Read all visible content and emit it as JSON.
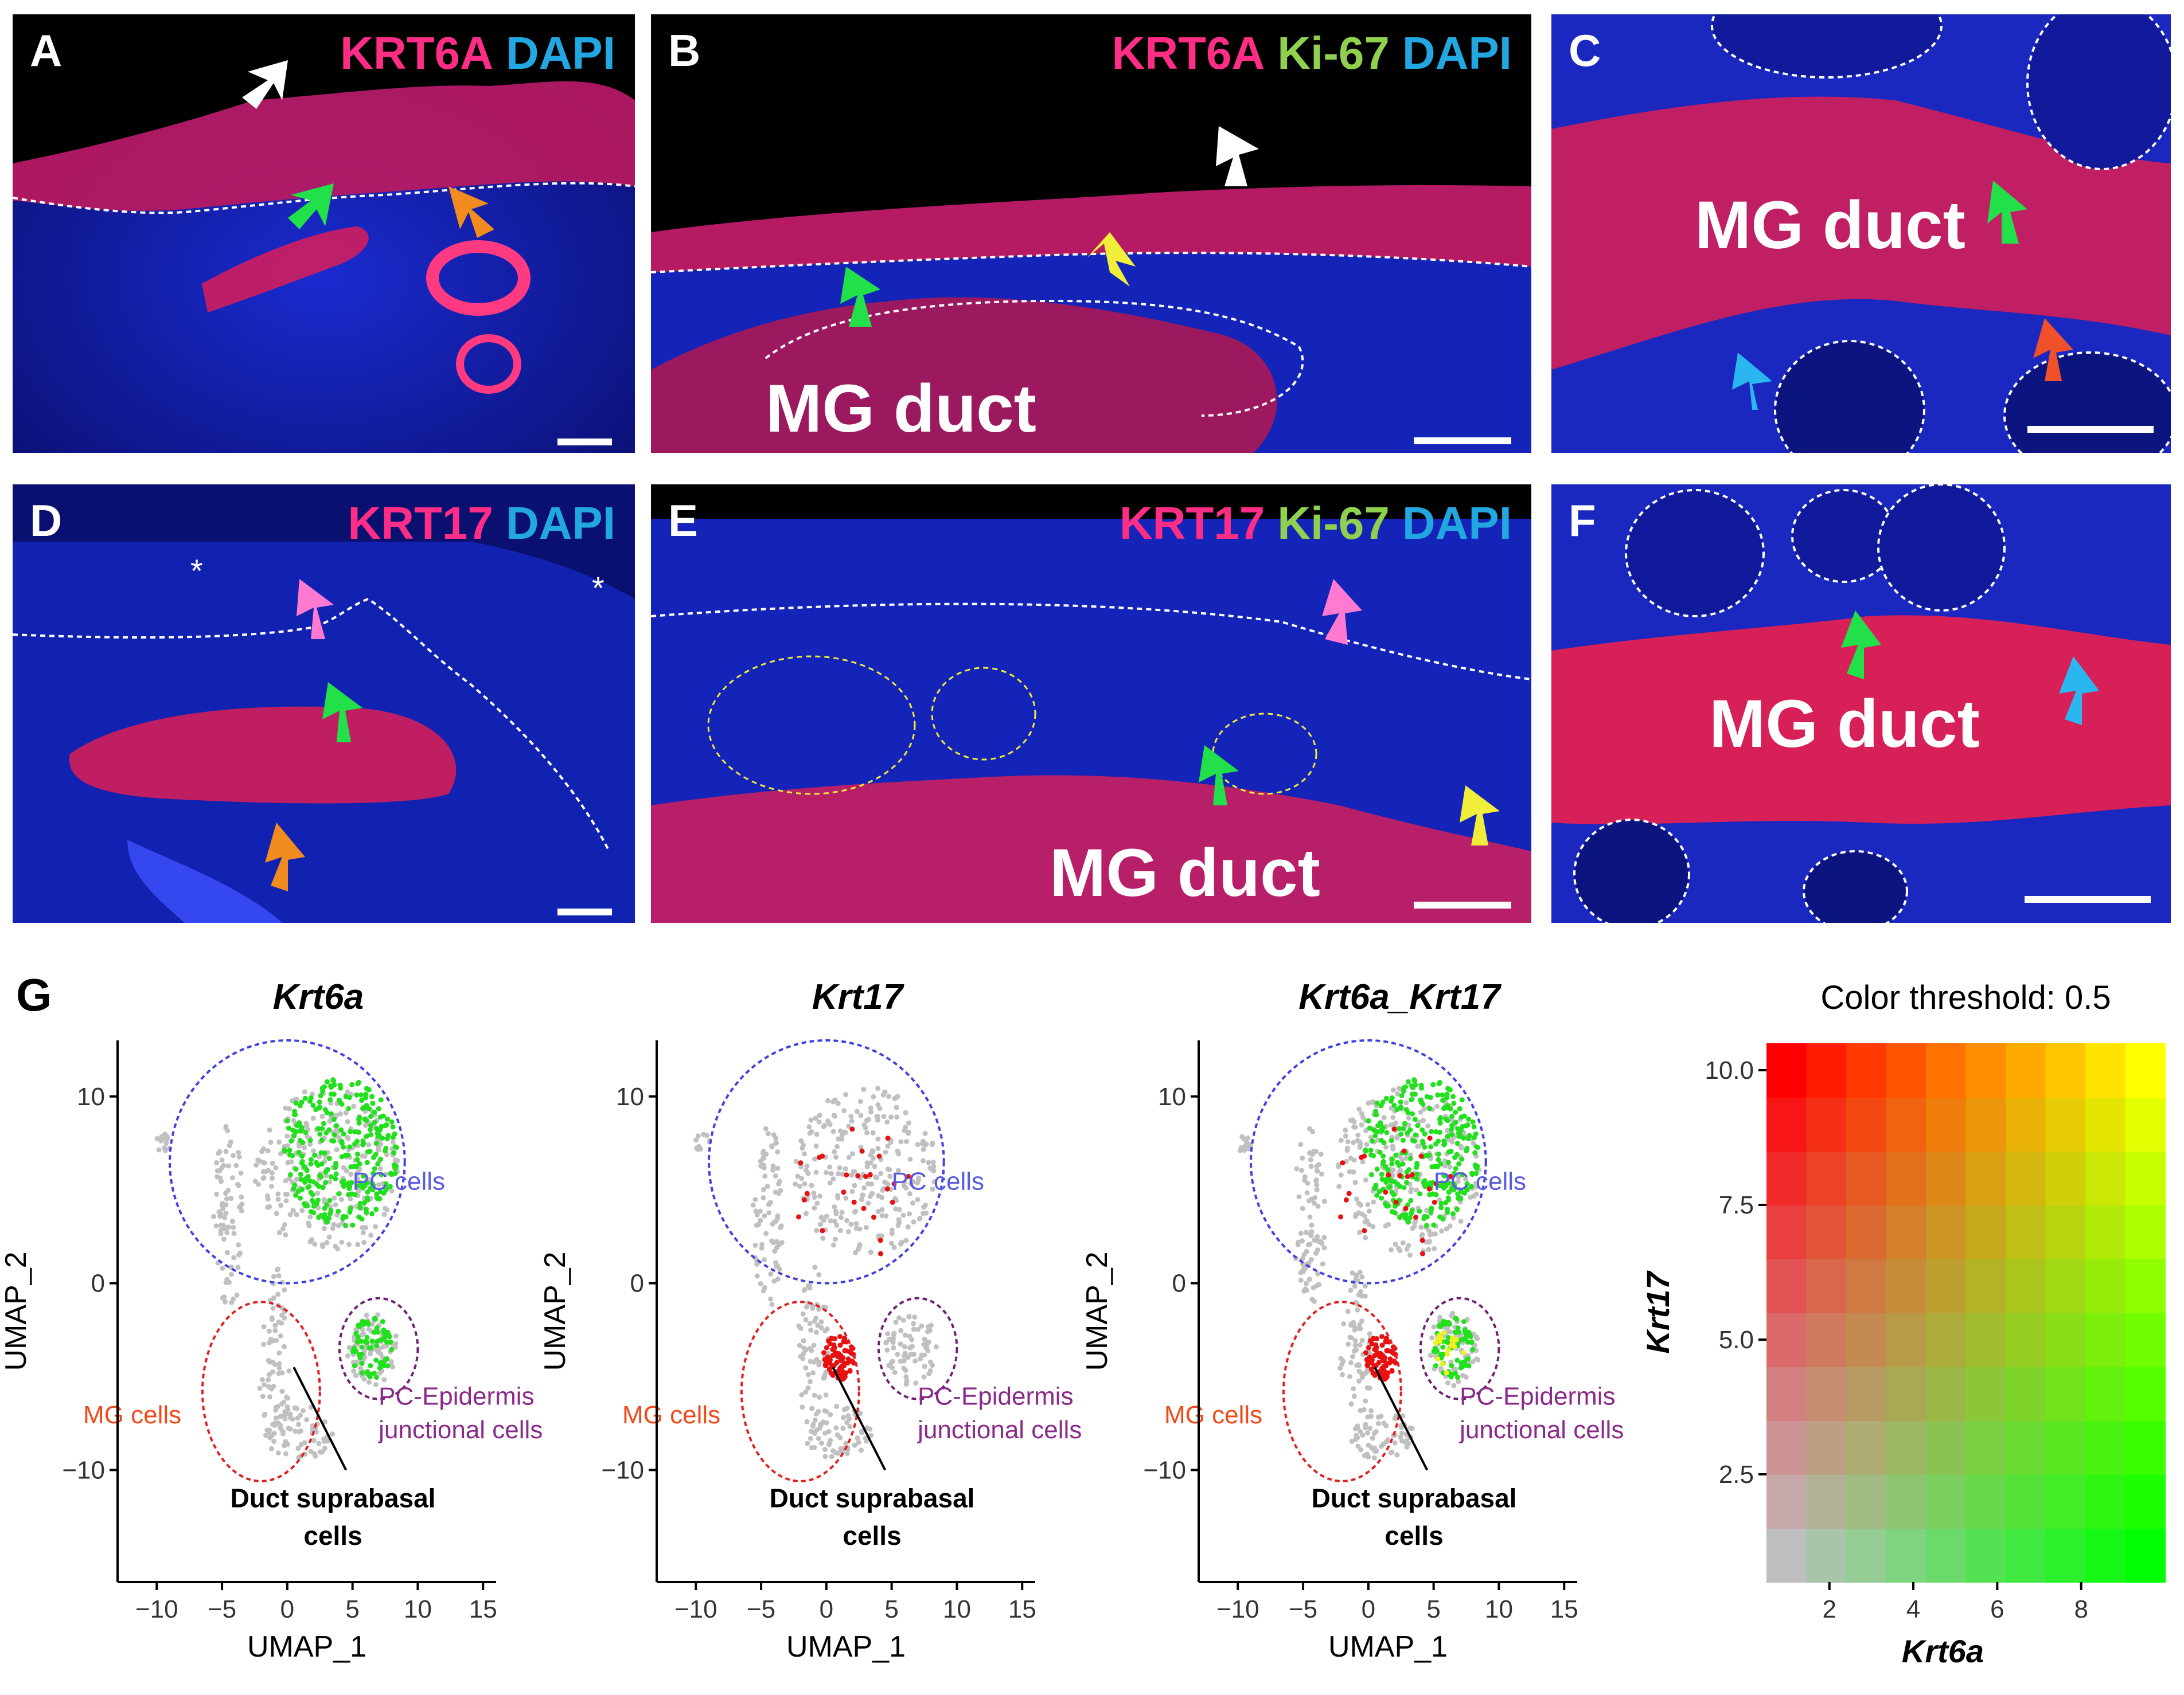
{
  "panels": {
    "A": {
      "letter": "A",
      "stain": [
        "KRT6A",
        "DAPI"
      ]
    },
    "B": {
      "letter": "B",
      "stain": [
        "KRT6A",
        "Ki-67",
        "DAPI"
      ],
      "structure": "MG duct"
    },
    "C": {
      "letter": "C",
      "structure": "MG duct"
    },
    "D": {
      "letter": "D",
      "stain": [
        "KRT17",
        "DAPI"
      ],
      "asterisk": "*"
    },
    "E": {
      "letter": "E",
      "stain": [
        "KRT17",
        "Ki-67",
        "DAPI"
      ],
      "structure": "MG duct"
    },
    "F": {
      "letter": "F",
      "structure": "MG duct"
    },
    "G": {
      "letter": "G"
    }
  },
  "colors": {
    "krt": "#ff2d86",
    "ki67": "#8fd14f",
    "dapi": "#22a7e0",
    "arrow_white": "#ffffff",
    "arrow_green": "#22e04a",
    "arrow_orange": "#f28c1e",
    "arrow_yellow": "#f0ee3a",
    "arrow_cyan": "#2ab7f0",
    "arrow_red": "#f0502a",
    "arrow_pink": "#ff7ad0",
    "pc_outline": "#4040e0",
    "mg_outline": "#e02020",
    "junction_outline": "#702070",
    "pc_text": "#5b5be0",
    "mg_text": "#f04a1a",
    "junction_text": "#8a2a8a"
  },
  "umap": {
    "xlabel": "UMAP_1",
    "ylabel": "UMAP_2",
    "xticks": [
      "−10",
      "−5",
      "0",
      "5",
      "10",
      "15"
    ],
    "yticks": [
      "10",
      "0",
      "−10"
    ],
    "plots": [
      {
        "title": "Krt6a"
      },
      {
        "title": "Krt17"
      },
      {
        "title": "Krt6a_Krt17"
      }
    ],
    "clusters": {
      "pc": "PC cells",
      "mg": "MG cells",
      "junction_line1": "PC-Epidermis",
      "junction_line2": "junctional cells",
      "duct_line1": "Duct suprabasal",
      "duct_line2": "cells"
    }
  },
  "legend": {
    "title": "Color threshold: 0.5",
    "xlabel": "Krt6a",
    "ylabel": "Krt17",
    "xticks": [
      "2",
      "4",
      "6",
      "8"
    ],
    "yticks": [
      "10.0",
      "7.5",
      "5.0",
      "2.5"
    ]
  },
  "chart_data": {
    "type": "heatmap",
    "title": "Color threshold: 0.5",
    "xlabel": "Krt6a",
    "ylabel": "Krt17",
    "xlim": [
      0.5,
      10
    ],
    "ylim": [
      0.5,
      10.5
    ],
    "x": [
      1,
      2,
      3,
      4,
      5,
      6,
      7,
      8,
      9,
      10
    ],
    "y": [
      1,
      2,
      3,
      4,
      5,
      6,
      7,
      8,
      9,
      10
    ],
    "corner_colors": {
      "low_low": "#bebebe",
      "high_krt6a": "#00ff00",
      "high_krt17": "#ff0000",
      "high_both": "#ffff00"
    }
  }
}
